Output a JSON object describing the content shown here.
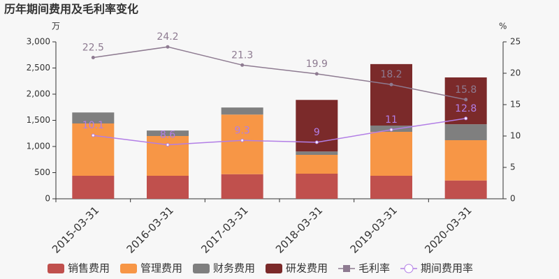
{
  "chart_data": {
    "type": "bar",
    "stacked": true,
    "title": "历年期间费用及毛利率变化",
    "y_unit": "万",
    "y2_unit": "%",
    "categories": [
      "2015-03-31",
      "2016-03-31",
      "2017-03-31",
      "2018-03-31",
      "2019-03-31",
      "2020-03-31"
    ],
    "series": [
      {
        "name": "销售费用",
        "type": "bar",
        "color": "#c0504d",
        "values": [
          440,
          440,
          470,
          480,
          440,
          350
        ]
      },
      {
        "name": "管理费用",
        "type": "bar",
        "color": "#f79646",
        "values": [
          1000,
          760,
          1140,
          360,
          840,
          770
        ]
      },
      {
        "name": "财务费用",
        "type": "bar",
        "color": "#7f7f7f",
        "values": [
          210,
          105,
          135,
          65,
          120,
          305
        ]
      },
      {
        "name": "研发费用",
        "type": "bar",
        "color": "#7b2a2a",
        "values": [
          0,
          0,
          0,
          985,
          1175,
          895
        ]
      },
      {
        "name": "毛利率",
        "type": "line",
        "axis": "y2",
        "marker": "square",
        "color": "#8e7b91",
        "values": [
          22.5,
          24.2,
          21.3,
          19.9,
          18.2,
          15.8
        ]
      },
      {
        "name": "期间费用率",
        "type": "line",
        "axis": "y2",
        "marker": "circle",
        "color": "#b27ee6",
        "values": [
          10.1,
          8.6,
          9.3,
          9,
          11,
          12.8
        ]
      }
    ],
    "ylim": [
      0,
      3000
    ],
    "yticks": [
      0,
      500,
      {
        "value": 1000,
        "label": "1,000"
      },
      {
        "value": 1500,
        "label": "1,500"
      },
      {
        "value": 2000,
        "label": "2,000"
      },
      {
        "value": 2500,
        "label": "2,500"
      },
      {
        "value": 3000,
        "label": "3,000"
      }
    ],
    "y2lim": [
      0,
      25
    ],
    "y2ticks": [
      0,
      5,
      10,
      15,
      20,
      25
    ],
    "grid": false,
    "legend": "bottom"
  }
}
